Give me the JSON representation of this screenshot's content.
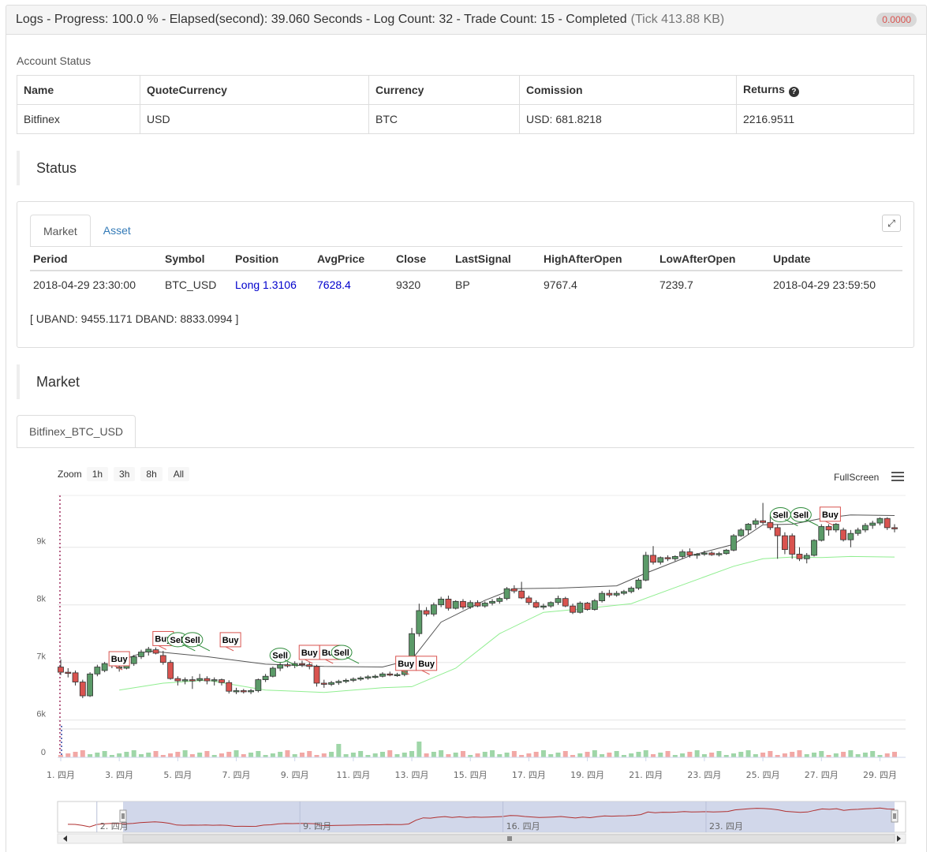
{
  "header": {
    "title": "Logs - Progress: 100.0 % - Elapsed(second): 39.060 Seconds - Log Count: 32 - Trade Count: 15 - Completed",
    "tick": "(Tick 413.88 KB)",
    "badge": "0.0000"
  },
  "account": {
    "title": "Account Status",
    "headers": [
      "Name",
      "QuoteCurrency",
      "Currency",
      "Comission",
      "Returns"
    ],
    "row": [
      "Bitfinex",
      "USD",
      "BTC",
      "USD: 681.8218",
      "2216.9511"
    ]
  },
  "status": {
    "title": "Status",
    "tabs": [
      "Market",
      "Asset"
    ],
    "headers": [
      "Period",
      "Symbol",
      "Position",
      "AvgPrice",
      "Close",
      "LastSignal",
      "HighAfterOpen",
      "LowAfterOpen",
      "Update"
    ],
    "row": [
      "2018-04-29 23:30:00",
      "BTC_USD",
      "Long 1.3106",
      "7628.4",
      "9320",
      "BP",
      "9767.4",
      "7239.7",
      "2018-04-29 23:59:50"
    ],
    "band": "[ UBAND: 9455.1171 DBAND: 8833.0994 ]"
  },
  "market": {
    "title": "Market",
    "tab": "Bitfinex_BTC_USD",
    "zoom_label": "Zoom",
    "zoom_buttons": [
      "1h",
      "3h",
      "8h",
      "All"
    ],
    "fullscreen": "FullScreen"
  },
  "colors": {
    "up": "#5b9a68",
    "down": "#d9534f",
    "upper_band": "#555555",
    "lower_band": "#90ee90",
    "navigator": "#c9d0e6"
  },
  "chart_data": {
    "type": "candlestick",
    "title": "",
    "y_ticks": [
      "6k",
      "7k",
      "8k",
      "9k"
    ],
    "volume_tick": "0",
    "x_ticks": [
      "1. 四月",
      "3. 四月",
      "5. 四月",
      "7. 四月",
      "9. 四月",
      "11. 四月",
      "13. 四月",
      "15. 四月",
      "17. 四月",
      "19. 四月",
      "21. 四月",
      "23. 四月",
      "25. 四月",
      "27. 四月",
      "29. 四月"
    ],
    "navigator_ticks": [
      "2. 四月",
      "9. 四月",
      "16. 四月",
      "23. 四月"
    ],
    "ylim": [
      5900,
      9900
    ],
    "day_range": [
      1,
      30
    ],
    "candles": [
      {
        "d": 1.0,
        "o": 6920,
        "h": 7050,
        "l": 6780,
        "c": 6830
      },
      {
        "d": 1.25,
        "o": 6830,
        "h": 6900,
        "l": 6740,
        "c": 6820
      },
      {
        "d": 1.5,
        "o": 6820,
        "h": 6860,
        "l": 6600,
        "c": 6660
      },
      {
        "d": 1.75,
        "o": 6660,
        "h": 6700,
        "l": 6380,
        "c": 6420
      },
      {
        "d": 2.0,
        "o": 6420,
        "h": 6830,
        "l": 6400,
        "c": 6800
      },
      {
        "d": 2.25,
        "o": 6800,
        "h": 6960,
        "l": 6760,
        "c": 6920
      },
      {
        "d": 2.5,
        "o": 6860,
        "h": 7010,
        "l": 6830,
        "c": 6980
      },
      {
        "d": 2.75,
        "o": 6940,
        "h": 7030,
        "l": 6900,
        "c": 6960
      },
      {
        "d": 3.0,
        "o": 6900,
        "h": 6960,
        "l": 6840,
        "c": 6920
      },
      {
        "d": 3.25,
        "o": 6900,
        "h": 7020,
        "l": 6880,
        "c": 6980
      },
      {
        "d": 3.5,
        "o": 6980,
        "h": 7130,
        "l": 6940,
        "c": 7100
      },
      {
        "d": 3.75,
        "o": 7100,
        "h": 7220,
        "l": 7060,
        "c": 7180
      },
      {
        "d": 4.0,
        "o": 7180,
        "h": 7270,
        "l": 7120,
        "c": 7230
      },
      {
        "d": 4.25,
        "o": 7220,
        "h": 7260,
        "l": 7140,
        "c": 7160
      },
      {
        "d": 4.5,
        "o": 7120,
        "h": 7200,
        "l": 6960,
        "c": 7000
      },
      {
        "d": 4.75,
        "o": 7000,
        "h": 7040,
        "l": 6700,
        "c": 6720
      },
      {
        "d": 5.0,
        "o": 6720,
        "h": 6760,
        "l": 6600,
        "c": 6680
      },
      {
        "d": 5.25,
        "o": 6680,
        "h": 6740,
        "l": 6620,
        "c": 6700
      },
      {
        "d": 5.5,
        "o": 6700,
        "h": 6760,
        "l": 6540,
        "c": 6690
      },
      {
        "d": 5.75,
        "o": 6690,
        "h": 6800,
        "l": 6660,
        "c": 6720
      },
      {
        "d": 6.0,
        "o": 6720,
        "h": 6760,
        "l": 6620,
        "c": 6680
      },
      {
        "d": 6.25,
        "o": 6680,
        "h": 6740,
        "l": 6600,
        "c": 6700
      },
      {
        "d": 6.5,
        "o": 6700,
        "h": 6720,
        "l": 6600,
        "c": 6650
      },
      {
        "d": 6.75,
        "o": 6650,
        "h": 6690,
        "l": 6460,
        "c": 6500
      },
      {
        "d": 7.0,
        "o": 6500,
        "h": 6560,
        "l": 6450,
        "c": 6510
      },
      {
        "d": 7.25,
        "o": 6510,
        "h": 6540,
        "l": 6460,
        "c": 6500
      },
      {
        "d": 7.5,
        "o": 6500,
        "h": 6540,
        "l": 6450,
        "c": 6510
      },
      {
        "d": 7.75,
        "o": 6510,
        "h": 6720,
        "l": 6480,
        "c": 6700
      },
      {
        "d": 8.0,
        "o": 6700,
        "h": 6800,
        "l": 6660,
        "c": 6760
      },
      {
        "d": 8.25,
        "o": 6760,
        "h": 6930,
        "l": 6740,
        "c": 6900
      },
      {
        "d": 8.5,
        "o": 6900,
        "h": 7010,
        "l": 6850,
        "c": 6960
      },
      {
        "d": 8.75,
        "o": 6960,
        "h": 7000,
        "l": 6910,
        "c": 6950
      },
      {
        "d": 9.0,
        "o": 6950,
        "h": 7020,
        "l": 6900,
        "c": 6980
      },
      {
        "d": 9.25,
        "o": 6980,
        "h": 7030,
        "l": 6920,
        "c": 6960
      },
      {
        "d": 9.5,
        "o": 6960,
        "h": 7000,
        "l": 6880,
        "c": 6930
      },
      {
        "d": 9.75,
        "o": 6930,
        "h": 6960,
        "l": 6580,
        "c": 6640
      },
      {
        "d": 10.0,
        "o": 6640,
        "h": 6700,
        "l": 6560,
        "c": 6620
      },
      {
        "d": 10.25,
        "o": 6620,
        "h": 6680,
        "l": 6590,
        "c": 6650
      },
      {
        "d": 10.5,
        "o": 6650,
        "h": 6700,
        "l": 6610,
        "c": 6670
      },
      {
        "d": 10.75,
        "o": 6670,
        "h": 6720,
        "l": 6640,
        "c": 6690
      },
      {
        "d": 11.0,
        "o": 6690,
        "h": 6740,
        "l": 6660,
        "c": 6710
      },
      {
        "d": 11.25,
        "o": 6710,
        "h": 6760,
        "l": 6680,
        "c": 6730
      },
      {
        "d": 11.5,
        "o": 6730,
        "h": 6780,
        "l": 6700,
        "c": 6750
      },
      {
        "d": 11.75,
        "o": 6750,
        "h": 6790,
        "l": 6720,
        "c": 6760
      },
      {
        "d": 12.0,
        "o": 6760,
        "h": 6830,
        "l": 6740,
        "c": 6800
      },
      {
        "d": 12.25,
        "o": 6800,
        "h": 6840,
        "l": 6760,
        "c": 6780
      },
      {
        "d": 12.5,
        "o": 6780,
        "h": 6820,
        "l": 6750,
        "c": 6790
      },
      {
        "d": 12.75,
        "o": 6790,
        "h": 6900,
        "l": 6760,
        "c": 6880
      },
      {
        "d": 13.0,
        "o": 6880,
        "h": 7600,
        "l": 6860,
        "c": 7500
      },
      {
        "d": 13.25,
        "o": 7500,
        "h": 8020,
        "l": 7450,
        "c": 7900
      },
      {
        "d": 13.5,
        "o": 7900,
        "h": 7960,
        "l": 7800,
        "c": 7840
      },
      {
        "d": 13.75,
        "o": 7840,
        "h": 8040,
        "l": 7800,
        "c": 8000
      },
      {
        "d": 14.0,
        "o": 8000,
        "h": 8140,
        "l": 7960,
        "c": 8100
      },
      {
        "d": 14.25,
        "o": 8100,
        "h": 8160,
        "l": 7900,
        "c": 7940
      },
      {
        "d": 14.5,
        "o": 7940,
        "h": 8080,
        "l": 7920,
        "c": 8060
      },
      {
        "d": 14.75,
        "o": 8060,
        "h": 8100,
        "l": 7920,
        "c": 7960
      },
      {
        "d": 15.0,
        "o": 7960,
        "h": 8080,
        "l": 7930,
        "c": 8040
      },
      {
        "d": 15.25,
        "o": 8040,
        "h": 8080,
        "l": 7960,
        "c": 7980
      },
      {
        "d": 15.5,
        "o": 7980,
        "h": 8060,
        "l": 7950,
        "c": 8030
      },
      {
        "d": 15.75,
        "o": 8030,
        "h": 8100,
        "l": 7990,
        "c": 8060
      },
      {
        "d": 16.0,
        "o": 8060,
        "h": 8140,
        "l": 8020,
        "c": 8110
      },
      {
        "d": 16.25,
        "o": 8110,
        "h": 8310,
        "l": 8080,
        "c": 8280
      },
      {
        "d": 16.5,
        "o": 8280,
        "h": 8340,
        "l": 8200,
        "c": 8240
      },
      {
        "d": 16.75,
        "o": 8240,
        "h": 8400,
        "l": 8100,
        "c": 8120
      },
      {
        "d": 17.0,
        "o": 8120,
        "h": 8160,
        "l": 8000,
        "c": 8040
      },
      {
        "d": 17.25,
        "o": 8040,
        "h": 8080,
        "l": 7940,
        "c": 7960
      },
      {
        "d": 17.5,
        "o": 7960,
        "h": 8020,
        "l": 7920,
        "c": 7980
      },
      {
        "d": 17.75,
        "o": 7980,
        "h": 8060,
        "l": 7950,
        "c": 8040
      },
      {
        "d": 18.0,
        "o": 8040,
        "h": 8160,
        "l": 8000,
        "c": 8110
      },
      {
        "d": 18.25,
        "o": 8110,
        "h": 8140,
        "l": 7960,
        "c": 7980
      },
      {
        "d": 18.5,
        "o": 7980,
        "h": 8020,
        "l": 7840,
        "c": 7870
      },
      {
        "d": 18.75,
        "o": 7870,
        "h": 8060,
        "l": 7850,
        "c": 8030
      },
      {
        "d": 19.0,
        "o": 8030,
        "h": 8050,
        "l": 7900,
        "c": 7920
      },
      {
        "d": 19.25,
        "o": 7920,
        "h": 8100,
        "l": 7900,
        "c": 8070
      },
      {
        "d": 19.5,
        "o": 8070,
        "h": 8240,
        "l": 8040,
        "c": 8200
      },
      {
        "d": 19.75,
        "o": 8200,
        "h": 8260,
        "l": 8130,
        "c": 8170
      },
      {
        "d": 20.0,
        "o": 8170,
        "h": 8240,
        "l": 8140,
        "c": 8200
      },
      {
        "d": 20.25,
        "o": 8200,
        "h": 8260,
        "l": 8170,
        "c": 8230
      },
      {
        "d": 20.5,
        "o": 8230,
        "h": 8320,
        "l": 8200,
        "c": 8290
      },
      {
        "d": 20.75,
        "o": 8290,
        "h": 8460,
        "l": 8260,
        "c": 8430
      },
      {
        "d": 21.0,
        "o": 8430,
        "h": 8920,
        "l": 8410,
        "c": 8860
      },
      {
        "d": 21.25,
        "o": 8860,
        "h": 9020,
        "l": 8700,
        "c": 8740
      },
      {
        "d": 21.5,
        "o": 8740,
        "h": 8840,
        "l": 8700,
        "c": 8820
      },
      {
        "d": 21.75,
        "o": 8820,
        "h": 8860,
        "l": 8760,
        "c": 8800
      },
      {
        "d": 22.0,
        "o": 8800,
        "h": 8860,
        "l": 8760,
        "c": 8840
      },
      {
        "d": 22.25,
        "o": 8840,
        "h": 8960,
        "l": 8800,
        "c": 8920
      },
      {
        "d": 22.5,
        "o": 8920,
        "h": 8980,
        "l": 8820,
        "c": 8860
      },
      {
        "d": 22.75,
        "o": 8860,
        "h": 8900,
        "l": 8800,
        "c": 8880
      },
      {
        "d": 23.0,
        "o": 8880,
        "h": 8940,
        "l": 8850,
        "c": 8900
      },
      {
        "d": 23.25,
        "o": 8900,
        "h": 8930,
        "l": 8850,
        "c": 8870
      },
      {
        "d": 23.5,
        "o": 8870,
        "h": 8920,
        "l": 8840,
        "c": 8890
      },
      {
        "d": 23.75,
        "o": 8890,
        "h": 8970,
        "l": 8870,
        "c": 8950
      },
      {
        "d": 24.0,
        "o": 8950,
        "h": 9230,
        "l": 8930,
        "c": 9200
      },
      {
        "d": 24.25,
        "o": 9200,
        "h": 9330,
        "l": 9180,
        "c": 9300
      },
      {
        "d": 24.5,
        "o": 9300,
        "h": 9420,
        "l": 9220,
        "c": 9400
      },
      {
        "d": 24.75,
        "o": 9400,
        "h": 9500,
        "l": 9330,
        "c": 9460
      },
      {
        "d": 25.0,
        "o": 9460,
        "h": 9770,
        "l": 9400,
        "c": 9430
      },
      {
        "d": 25.25,
        "o": 9430,
        "h": 9560,
        "l": 9300,
        "c": 9340
      },
      {
        "d": 25.5,
        "o": 9340,
        "h": 9400,
        "l": 8800,
        "c": 9200
      },
      {
        "d": 25.75,
        "o": 9200,
        "h": 9260,
        "l": 8880,
        "c": 8960
      },
      {
        "d": 26.0,
        "o": 9200,
        "h": 9240,
        "l": 8800,
        "c": 8880
      },
      {
        "d": 26.25,
        "o": 8880,
        "h": 9000,
        "l": 8760,
        "c": 8800
      },
      {
        "d": 26.5,
        "o": 8800,
        "h": 8900,
        "l": 8720,
        "c": 8860
      },
      {
        "d": 26.75,
        "o": 8860,
        "h": 9140,
        "l": 8840,
        "c": 9120
      },
      {
        "d": 27.0,
        "o": 9120,
        "h": 9400,
        "l": 9100,
        "c": 9360
      },
      {
        "d": 27.25,
        "o": 9360,
        "h": 9400,
        "l": 9200,
        "c": 9300
      },
      {
        "d": 27.5,
        "o": 9300,
        "h": 9420,
        "l": 9260,
        "c": 9400
      },
      {
        "d": 27.75,
        "o": 9300,
        "h": 9340,
        "l": 9100,
        "c": 9130
      },
      {
        "d": 28.0,
        "o": 9130,
        "h": 9300,
        "l": 9000,
        "c": 9240
      },
      {
        "d": 28.25,
        "o": 9240,
        "h": 9340,
        "l": 9200,
        "c": 9300
      },
      {
        "d": 28.5,
        "o": 9300,
        "h": 9420,
        "l": 9260,
        "c": 9380
      },
      {
        "d": 28.75,
        "o": 9380,
        "h": 9460,
        "l": 9320,
        "c": 9420
      },
      {
        "d": 29.0,
        "o": 9420,
        "h": 9520,
        "l": 9380,
        "c": 9500
      },
      {
        "d": 29.25,
        "o": 9500,
        "h": 9520,
        "l": 9300,
        "c": 9340
      },
      {
        "d": 29.5,
        "o": 9340,
        "h": 9400,
        "l": 9260,
        "c": 9320
      }
    ],
    "upper_band": [
      [
        3.0,
        7030
      ],
      [
        4.0,
        7200
      ],
      [
        6.0,
        7100
      ],
      [
        8.0,
        6970
      ],
      [
        10.0,
        6930
      ],
      [
        12.0,
        6920
      ],
      [
        13.0,
        7050
      ],
      [
        14.0,
        7700
      ],
      [
        15.5,
        8080
      ],
      [
        16.5,
        8280
      ],
      [
        18.0,
        8290
      ],
      [
        20.0,
        8330
      ],
      [
        21.0,
        8550
      ],
      [
        22.5,
        8850
      ],
      [
        24.0,
        9050
      ],
      [
        25.0,
        9390
      ],
      [
        26.0,
        9400
      ],
      [
        27.0,
        9500
      ],
      [
        28.0,
        9560
      ],
      [
        29.5,
        9550
      ]
    ],
    "lower_band": [
      [
        3.0,
        6520
      ],
      [
        4.5,
        6640
      ],
      [
        6.0,
        6690
      ],
      [
        8.0,
        6520
      ],
      [
        10.0,
        6480
      ],
      [
        12.0,
        6560
      ],
      [
        13.0,
        6580
      ],
      [
        14.5,
        6900
      ],
      [
        16.0,
        7500
      ],
      [
        17.5,
        7870
      ],
      [
        19.0,
        7940
      ],
      [
        20.5,
        8020
      ],
      [
        22.0,
        8300
      ],
      [
        24.0,
        8670
      ],
      [
        25.0,
        8800
      ],
      [
        26.0,
        8830
      ],
      [
        27.0,
        8820
      ],
      [
        28.0,
        8840
      ],
      [
        29.5,
        8830
      ]
    ],
    "signals": [
      {
        "label": "Buy",
        "d": 3.0,
        "price": 6900,
        "type": "buy"
      },
      {
        "label": "Buy",
        "d": 4.5,
        "price": 7250,
        "type": "buy"
      },
      {
        "label": "Sell",
        "d": 5.0,
        "price": 7230,
        "type": "sell"
      },
      {
        "label": "Sell",
        "d": 5.5,
        "price": 7230,
        "type": "sell"
      },
      {
        "label": "Buy",
        "d": 6.8,
        "price": 7230,
        "type": "buy"
      },
      {
        "label": "Sell",
        "d": 8.5,
        "price": 6960,
        "type": "sell"
      },
      {
        "label": "Buy",
        "d": 9.5,
        "price": 7010,
        "type": "buy"
      },
      {
        "label": "Buy",
        "d": 10.2,
        "price": 7010,
        "type": "buy"
      },
      {
        "label": "Sell",
        "d": 10.6,
        "price": 7010,
        "type": "sell"
      },
      {
        "label": "Buy",
        "d": 12.8,
        "price": 6820,
        "type": "buy"
      },
      {
        "label": "Buy",
        "d": 13.5,
        "price": 6820,
        "type": "buy"
      },
      {
        "label": "Sell",
        "d": 25.6,
        "price": 9400,
        "type": "sell"
      },
      {
        "label": "Sell",
        "d": 26.3,
        "price": 9400,
        "type": "sell"
      },
      {
        "label": "Buy",
        "d": 27.3,
        "price": 9410,
        "type": "buy"
      }
    ]
  }
}
